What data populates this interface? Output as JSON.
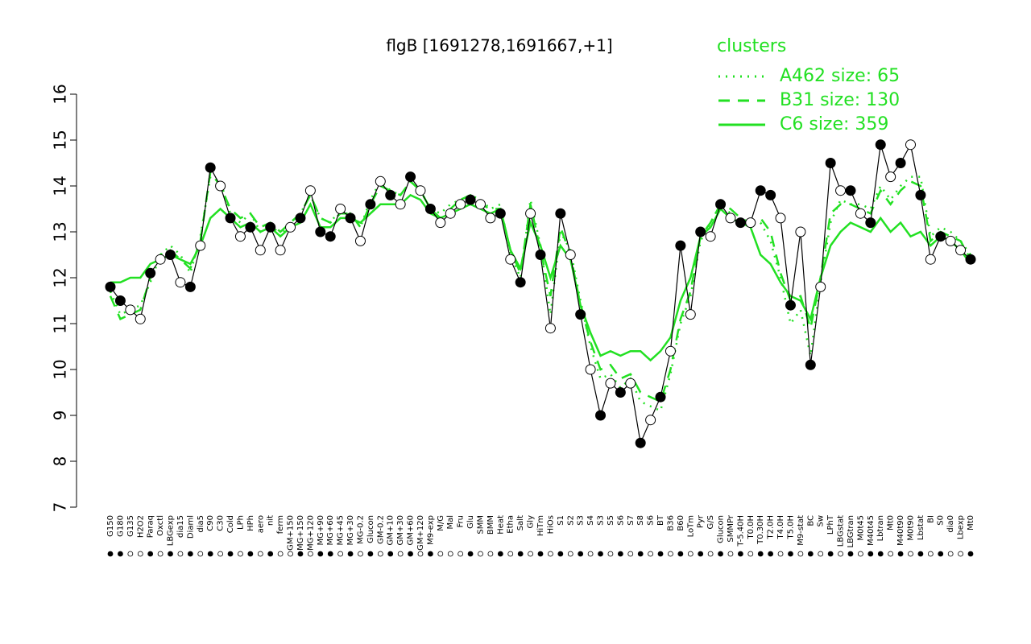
{
  "chart_data": {
    "type": "line",
    "title": "flgB [1691278,1691667,+1]",
    "legend_title": "clusters",
    "ylim": [
      7,
      16
    ],
    "yticks": [
      7,
      8,
      9,
      10,
      11,
      12,
      13,
      14,
      15,
      16
    ],
    "legend_position": "top-right",
    "point_color": "#000000",
    "categories": [
      "G150",
      "G180",
      "G135",
      "H2O2",
      "Paraq",
      "Oxctl",
      "LBGexp",
      "dia15",
      "Diaml",
      "dia5",
      "C90",
      "C30",
      "Cold",
      "LPh",
      "HPh",
      "aero",
      "nit",
      "ferm",
      "GM+150",
      "MG+150",
      "MG+120",
      "MG+90",
      "MG+60",
      "MG+45",
      "MG+30",
      "MG-0.2",
      "Glucon",
      "GM-0.2",
      "GM+10",
      "GM+30",
      "GM+60",
      "GM+120",
      "M9-exp",
      "M/G",
      "Mal",
      "Fru",
      "Glu",
      "SMM",
      "BMM",
      "Heat",
      "Etha",
      "Salt",
      "Gly",
      "HiTm",
      "HiOs",
      "S1",
      "S2",
      "S3",
      "S4",
      "S3",
      "S5",
      "S6",
      "S7",
      "S8",
      "S6",
      "BT",
      "B36",
      "B60",
      "LoTm",
      "Pyr",
      "G/S",
      "Glucon",
      "SMMPr",
      "T-5.40H",
      "T0.0H",
      "T0.30H",
      "T2.0H",
      "T4.0H",
      "T5.0H",
      "M9-stat",
      "BC",
      "Sw",
      "LPhT",
      "LBGstat",
      "LBGtran",
      "M0t45",
      "M40t45",
      "Lbtran",
      "Mt0",
      "M40t90",
      "M0t90",
      "Lbstat",
      "BI",
      "S0",
      "dia0",
      "Lbexp",
      "Mt0"
    ],
    "values": [
      11.8,
      11.5,
      11.3,
      11.1,
      12.1,
      12.4,
      12.5,
      11.9,
      11.8,
      12.7,
      14.4,
      14.0,
      13.3,
      12.9,
      13.1,
      12.6,
      13.1,
      12.6,
      13.1,
      13.3,
      13.9,
      13.0,
      12.9,
      13.5,
      13.3,
      12.8,
      13.6,
      14.1,
      13.8,
      13.6,
      14.2,
      13.9,
      13.5,
      13.2,
      13.4,
      13.6,
      13.7,
      13.6,
      13.3,
      13.4,
      12.4,
      11.9,
      13.4,
      12.5,
      10.9,
      13.4,
      12.5,
      11.2,
      10.0,
      9.0,
      9.7,
      9.5,
      9.7,
      8.4,
      8.9,
      9.4,
      10.4,
      12.7,
      11.2,
      13.0,
      12.9,
      13.6,
      13.3,
      13.2,
      13.2,
      13.9,
      13.8,
      13.3,
      11.4,
      13.0,
      10.1,
      11.8,
      14.5,
      13.9,
      13.9,
      13.4,
      13.2,
      14.9,
      14.2,
      14.5,
      14.9,
      13.8,
      12.4,
      12.9,
      12.8,
      12.6,
      12.4
    ],
    "filled": [
      true,
      true,
      false,
      false,
      true,
      false,
      true,
      false,
      true,
      false,
      true,
      false,
      true,
      false,
      true,
      false,
      true,
      false,
      false,
      true,
      false,
      true,
      true,
      false,
      true,
      false,
      true,
      false,
      true,
      false,
      true,
      false,
      true,
      false,
      false,
      false,
      true,
      false,
      false,
      true,
      false,
      true,
      false,
      true,
      false,
      true,
      false,
      true,
      false,
      true,
      false,
      true,
      false,
      true,
      false,
      true,
      false,
      true,
      false,
      true,
      false,
      true,
      false,
      true,
      false,
      true,
      true,
      false,
      true,
      false,
      true,
      false,
      true,
      false,
      true,
      false,
      true,
      true,
      false,
      true,
      false,
      true,
      false,
      true,
      false,
      false,
      true
    ],
    "series": [
      {
        "name": "A462 size: 65",
        "color": "#22e022",
        "line_style": "dotted",
        "values": [
          11.7,
          11.2,
          11.3,
          11.4,
          11.9,
          12.5,
          12.7,
          12.5,
          12.1,
          12.9,
          14.2,
          14.1,
          13.4,
          13.2,
          13.4,
          13.0,
          13.2,
          12.9,
          13.2,
          13.4,
          13.8,
          13.3,
          13.2,
          13.5,
          13.4,
          13.1,
          13.7,
          14.1,
          13.9,
          13.8,
          14.1,
          13.9,
          13.5,
          13.4,
          13.6,
          13.7,
          13.8,
          13.7,
          13.5,
          13.6,
          12.5,
          12.0,
          13.7,
          12.7,
          11.2,
          13.0,
          12.6,
          11.5,
          10.5,
          9.8,
          9.9,
          9.6,
          9.8,
          9.3,
          9.2,
          9.1,
          9.9,
          11.0,
          11.6,
          12.8,
          13.2,
          13.6,
          13.4,
          13.2,
          13.2,
          13.2,
          12.8,
          12.0,
          11.0,
          11.3,
          10.3,
          11.9,
          13.2,
          13.7,
          13.6,
          13.6,
          13.5,
          14.0,
          13.7,
          14.0,
          14.2,
          14.2,
          12.9,
          13.1,
          13.0,
          12.8,
          12.5
        ]
      },
      {
        "name": "B31 size: 130",
        "color": "#22e022",
        "line_style": "dashed",
        "values": [
          11.6,
          11.1,
          11.2,
          11.3,
          12.0,
          12.5,
          12.6,
          12.4,
          12.2,
          12.8,
          14.3,
          14.0,
          13.5,
          13.3,
          13.4,
          13.1,
          13.2,
          13.0,
          13.2,
          13.4,
          13.8,
          13.3,
          13.2,
          13.4,
          13.4,
          13.1,
          13.6,
          14.0,
          13.9,
          13.8,
          14.1,
          13.9,
          13.5,
          13.3,
          13.5,
          13.7,
          13.8,
          13.6,
          13.5,
          13.5,
          12.6,
          12.1,
          13.6,
          12.6,
          11.6,
          13.1,
          12.5,
          11.4,
          10.6,
          10.0,
          10.1,
          9.8,
          9.9,
          9.5,
          9.4,
          9.3,
          10.0,
          11.1,
          11.7,
          12.9,
          13.2,
          13.6,
          13.5,
          13.3,
          13.2,
          13.3,
          13.0,
          12.1,
          11.5,
          11.6,
          10.9,
          12.0,
          13.4,
          13.6,
          13.6,
          13.5,
          13.4,
          13.9,
          13.6,
          13.9,
          14.1,
          14.0,
          12.8,
          13.0,
          12.9,
          12.8,
          12.4
        ]
      },
      {
        "name": "C6 size: 359",
        "color": "#22e022",
        "line_style": "solid",
        "values": [
          11.9,
          11.9,
          12.0,
          12.0,
          12.3,
          12.4,
          12.5,
          12.4,
          12.3,
          12.7,
          13.3,
          13.5,
          13.3,
          13.1,
          13.2,
          13.0,
          13.1,
          12.9,
          13.1,
          13.2,
          13.6,
          13.1,
          13.1,
          13.3,
          13.3,
          13.2,
          13.4,
          13.6,
          13.6,
          13.6,
          13.8,
          13.7,
          13.4,
          13.3,
          13.4,
          13.5,
          13.6,
          13.5,
          13.4,
          13.5,
          12.6,
          12.2,
          13.2,
          12.7,
          12.0,
          12.7,
          12.4,
          11.4,
          10.8,
          10.3,
          10.4,
          10.3,
          10.4,
          10.4,
          10.2,
          10.4,
          10.7,
          11.5,
          12.0,
          12.9,
          13.1,
          13.5,
          13.3,
          13.2,
          13.1,
          12.5,
          12.3,
          11.9,
          11.6,
          11.5,
          11.1,
          12.0,
          12.7,
          13.0,
          13.2,
          13.1,
          13.0,
          13.3,
          13.0,
          13.2,
          12.9,
          13.0,
          12.7,
          12.9,
          12.8,
          12.6,
          12.3
        ]
      }
    ]
  }
}
